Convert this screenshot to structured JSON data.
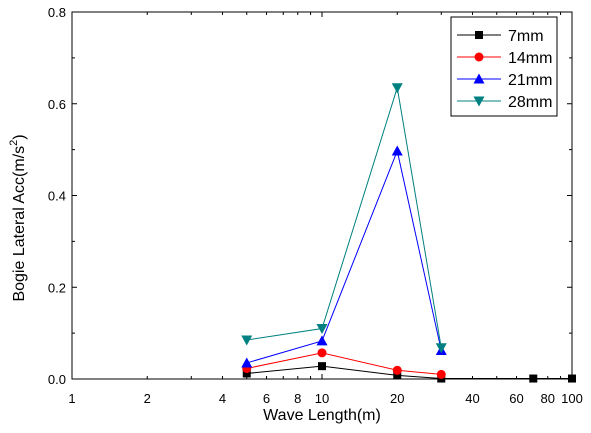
{
  "chart_data": {
    "type": "line",
    "xlabel": "Wave Length(m)",
    "ylabel": "Bogie Lateral Acc(m/s",
    "ylabel_sup": "2",
    "ylabel_close": ")",
    "x_scale": "log",
    "xlim": [
      1,
      100
    ],
    "ylim": [
      0,
      0.8
    ],
    "x_ticks": [
      1,
      2,
      4,
      6,
      8,
      10,
      20,
      40,
      60,
      80,
      100
    ],
    "x_tick_labels": [
      "1",
      "2",
      "4",
      "6",
      "8",
      "10",
      "20",
      "40",
      "60",
      "80",
      "100"
    ],
    "y_ticks": [
      0,
      0.2,
      0.4,
      0.6,
      0.8
    ],
    "y_tick_labels": [
      "0.0",
      "0.2",
      "0.4",
      "0.6",
      "0.8"
    ],
    "grid": false,
    "legend_position": "top-right",
    "series": [
      {
        "name": "7mm",
        "color": "#000000",
        "marker": "square",
        "x": [
          5,
          10,
          20,
          30,
          70,
          100
        ],
        "y": [
          0.012,
          0.028,
          0.008,
          0.001,
          0.001,
          0.001
        ]
      },
      {
        "name": "14mm",
        "color": "#ff0000",
        "marker": "circle",
        "x": [
          5,
          10,
          20,
          30
        ],
        "y": [
          0.023,
          0.057,
          0.019,
          0.01
        ]
      },
      {
        "name": "21mm",
        "color": "#0000ff",
        "marker": "triangle-up",
        "x": [
          5,
          10,
          20,
          30
        ],
        "y": [
          0.035,
          0.083,
          0.497,
          0.062
        ]
      },
      {
        "name": "28mm",
        "color": "#008080",
        "marker": "triangle-down",
        "x": [
          5,
          10,
          20,
          30
        ],
        "y": [
          0.085,
          0.11,
          0.635,
          0.068
        ]
      }
    ]
  }
}
